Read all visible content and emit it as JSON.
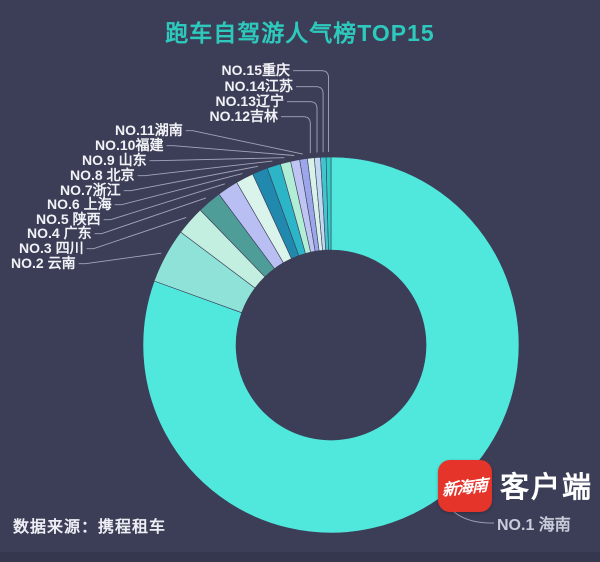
{
  "page": {
    "bg": "#3C3E57"
  },
  "title": {
    "text": "跑车自驾游人气榜TOP15",
    "color": "#2DC9BD"
  },
  "footer": {
    "source_text": "数据来源：携程租车"
  },
  "branding": {
    "logo_text": "新海南",
    "logo_color": "#E5352B",
    "app_label": "客户端"
  },
  "chart_data": {
    "type": "pie",
    "subtype": "donut",
    "title": "跑车自驾游人气榜TOP15",
    "legend": "none",
    "label_style": "leader-line callouts",
    "background": "#3C3E57",
    "series": [
      {
        "rank": 1,
        "label": "NO.1 海南",
        "region": "海南",
        "share_pct_est": 80.5,
        "arc_deg_est": 289.9,
        "color": "#50E8DD"
      },
      {
        "rank": 2,
        "label": "NO.2 云南",
        "region": "云南",
        "share_pct_est": 4.7,
        "arc_deg_est": 17.0,
        "color": "#8FE2D7"
      },
      {
        "rank": 3,
        "label": "NO.3 四川",
        "region": "四川",
        "share_pct_est": 2.5,
        "arc_deg_est": 9.0,
        "color": "#C3EFE0"
      },
      {
        "rank": 4,
        "label": "NO.4 广东",
        "region": "广东",
        "share_pct_est": 2.1,
        "arc_deg_est": 7.5,
        "color": "#4F9D98"
      },
      {
        "rank": 5,
        "label": "NO.5 陕西",
        "region": "陕西",
        "share_pct_est": 1.8,
        "arc_deg_est": 6.5,
        "color": "#B9BFF2"
      },
      {
        "rank": 6,
        "label": "NO.6 上海",
        "region": "上海",
        "share_pct_est": 1.5,
        "arc_deg_est": 5.5,
        "color": "#DAF4EC"
      },
      {
        "rank": 7,
        "label": "NO.7浙江",
        "region": "浙江",
        "share_pct_est": 1.3,
        "arc_deg_est": 4.8,
        "color": "#2189AE"
      },
      {
        "rank": 8,
        "label": "NO.8 北京",
        "region": "北京",
        "share_pct_est": 1.2,
        "arc_deg_est": 4.2,
        "color": "#2BB5C6"
      },
      {
        "rank": 9,
        "label": "NO.9 山东",
        "region": "山东",
        "share_pct_est": 0.9,
        "arc_deg_est": 3.2,
        "color": "#B2EDD6"
      },
      {
        "rank": 10,
        "label": "NO.10福建",
        "region": "福建",
        "share_pct_est": 0.8,
        "arc_deg_est": 2.8,
        "color": "#BFC5F2"
      },
      {
        "rank": 11,
        "label": "NO.11湖南",
        "region": "湖南",
        "share_pct_est": 0.7,
        "arc_deg_est": 2.4,
        "color": "#9CA6EA"
      },
      {
        "rank": 12,
        "label": "NO.12吉林",
        "region": "吉林",
        "share_pct_est": 0.6,
        "arc_deg_est": 2.1,
        "color": "#D8F2EA"
      },
      {
        "rank": 13,
        "label": "NO.13辽宁",
        "region": "辽宁",
        "share_pct_est": 0.5,
        "arc_deg_est": 1.9,
        "color": "#C3D9F2"
      },
      {
        "rank": 14,
        "label": "NO.14江苏",
        "region": "江苏",
        "share_pct_est": 0.5,
        "arc_deg_est": 1.7,
        "color": "#43C3CE"
      },
      {
        "rank": 15,
        "label": "NO.15重庆",
        "region": "重庆",
        "share_pct_est": 0.4,
        "arc_deg_est": 1.5,
        "color": "#2FCFC5"
      }
    ]
  }
}
